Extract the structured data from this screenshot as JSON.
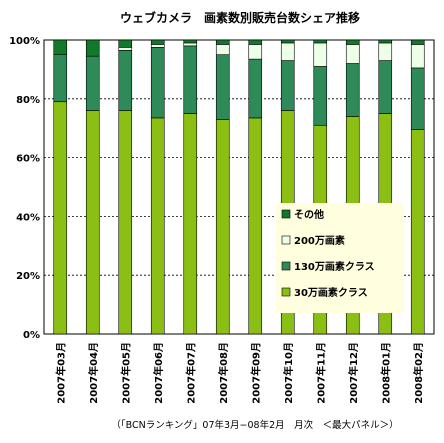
{
  "chart_data": {
    "type": "bar",
    "stacked": true,
    "title": "ウェブカメラ　画素数別販売台数シェア推移",
    "caption": "（「BCNランキング」07年3月−08年2月　月次　＜最大パネル＞）",
    "categories": [
      "2007年03月",
      "2007年04月",
      "2007年05月",
      "2007年06月",
      "2007年07月",
      "2007年08月",
      "2007年09月",
      "2007年10月",
      "2007年11月",
      "2007年12月",
      "2008年01月",
      "2008年02月"
    ],
    "ylim": [
      0,
      100
    ],
    "yticks": [
      "0%",
      "20%",
      "40%",
      "60%",
      "80%",
      "100%"
    ],
    "grid": "dashed horizontal",
    "legend_position": "center-right",
    "series": [
      {
        "name": "30万画素クラス",
        "color": "#8cbf14",
        "values": [
          79,
          76,
          76,
          73.5,
          75,
          73,
          73.5,
          76,
          71,
          74,
          75,
          69.5
        ]
      },
      {
        "name": "130万画素クラス",
        "color": "#2e8b57",
        "values": [
          16,
          18.5,
          20.5,
          24,
          23,
          22,
          20,
          17,
          20,
          18,
          18,
          21
        ]
      },
      {
        "name": "200万画素",
        "color": "#eeffe8",
        "values": [
          0,
          0,
          1,
          1,
          1,
          3.5,
          5,
          6,
          8,
          6.5,
          6,
          8
        ]
      },
      {
        "name": "その他",
        "color": "#117a2a",
        "values": [
          5,
          5.5,
          2.5,
          1.5,
          1,
          1.5,
          1.5,
          1,
          1,
          1.5,
          1,
          1.5
        ]
      }
    ]
  }
}
